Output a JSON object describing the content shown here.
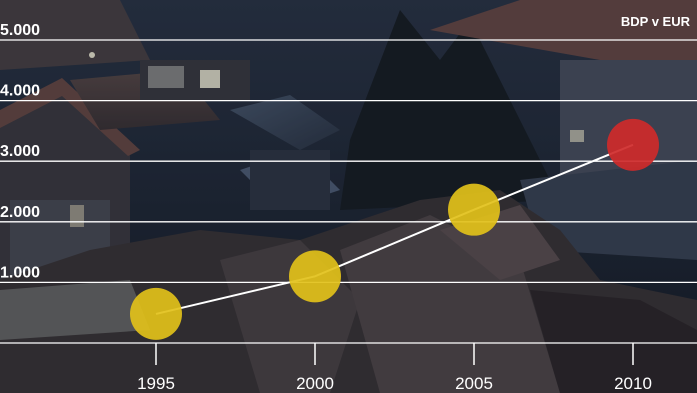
{
  "chart_data": {
    "type": "scatter",
    "title": "",
    "unit_label": "BDP v EUR",
    "xlabel": "",
    "ylabel": "",
    "x_ticks": [
      "1995",
      "2000",
      "2005",
      "2010"
    ],
    "y_ticks": [
      "1.000",
      "2.000",
      "3.000",
      "4.000",
      "5.000"
    ],
    "y_tick_values": [
      1000,
      2000,
      3000,
      4000,
      5000
    ],
    "ylim": [
      0,
      5500
    ],
    "grid": true,
    "series": [
      {
        "x": [
          1995,
          2000,
          2005,
          2010
        ],
        "y": [
          480,
          1100,
          2200,
          3270
        ],
        "colors": [
          "#e2c11a",
          "#e2c11a",
          "#e2c11a",
          "#cf2a2a"
        ]
      }
    ],
    "line_color": "#ffffff",
    "background": "night photo of rooftops"
  }
}
